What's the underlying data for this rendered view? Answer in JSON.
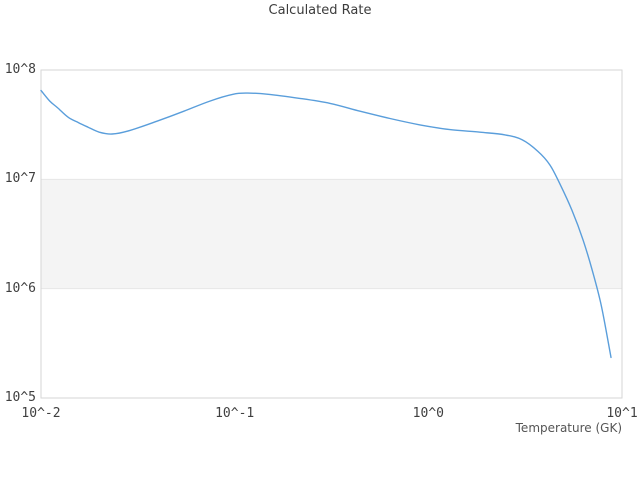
{
  "page": {
    "background": "#ffffff"
  },
  "chart_data": {
    "type": "line",
    "title": "Calculated Rate",
    "xlabel": "Temperature (GK)",
    "ylabel": "",
    "x_scale": "log",
    "y_scale": "log",
    "xlim": [
      0.01,
      10
    ],
    "ylim": [
      100000,
      100000000
    ],
    "grid": "horizontal-decade-band",
    "legend": "none",
    "x_ticks": {
      "values": [
        0.01,
        0.1,
        1,
        10
      ],
      "labels": [
        "10^-2",
        "10^-1",
        "10^0",
        "10^1"
      ]
    },
    "y_ticks": {
      "values": [
        100000,
        1000000,
        10000000,
        100000000
      ],
      "labels": [
        "10^5",
        "10^6",
        "10^7",
        "10^8"
      ]
    },
    "band": {
      "y_from": 1000000,
      "y_to": 10000000,
      "fill": "#f4f4f4",
      "edge": "#e6e6e6"
    },
    "frame_color": "#d6d6d6",
    "series": [
      {
        "name": "Calculated Rate",
        "color": "#5a9edb",
        "x": [
          0.01,
          0.0111,
          0.0122,
          0.0138,
          0.0156,
          0.0175,
          0.02,
          0.0233,
          0.0288,
          0.0397,
          0.0547,
          0.0745,
          0.098,
          0.117,
          0.149,
          0.217,
          0.311,
          0.444,
          0.634,
          0.906,
          1.29,
          1.85,
          2.49,
          3.05,
          3.68,
          4.25,
          4.79,
          5.52,
          6.29,
          7.0,
          7.7,
          8.27,
          8.77
        ],
        "y": [
          65000000,
          52000000,
          45000000,
          37000000,
          33000000,
          30000000,
          27000000,
          26000000,
          28000000,
          34000000,
          42000000,
          52000000,
          60000000,
          61500000,
          60000000,
          55000000,
          49500000,
          42000000,
          36000000,
          31500000,
          28500000,
          27000000,
          25500000,
          23000000,
          18000000,
          13500000,
          9000000,
          5200000,
          2800000,
          1500000,
          790000,
          420000,
          235000
        ]
      }
    ]
  }
}
